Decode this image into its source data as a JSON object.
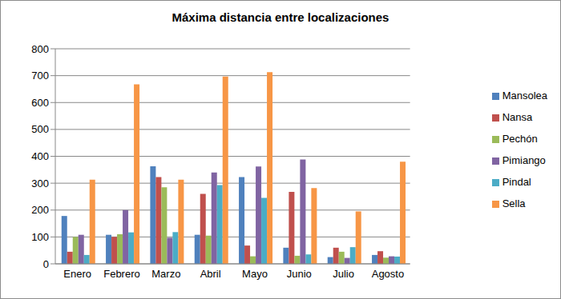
{
  "chart_data": {
    "type": "bar",
    "title": "Máxima distancia entre localizaciones",
    "categories": [
      "Enero",
      "Febrero",
      "Marzo",
      "Abril",
      "Mayo",
      "Junio",
      "Julio",
      "Agosto"
    ],
    "series": [
      {
        "name": "Mansolea",
        "color": "#4f81bd",
        "values": [
          178,
          108,
          363,
          108,
          323,
          60,
          25,
          33
        ]
      },
      {
        "name": "Nansa",
        "color": "#c0504d",
        "values": [
          45,
          100,
          323,
          260,
          68,
          268,
          60,
          47
        ]
      },
      {
        "name": "Pechón",
        "color": "#9bbb59",
        "values": [
          100,
          110,
          285,
          105,
          28,
          30,
          45,
          23
        ]
      },
      {
        "name": "Pimiango",
        "color": "#8064a2",
        "values": [
          108,
          200,
          97,
          340,
          362,
          388,
          22,
          28
        ]
      },
      {
        "name": "Pindal",
        "color": "#4bacc6",
        "values": [
          33,
          117,
          118,
          293,
          245,
          35,
          62,
          27
        ]
      },
      {
        "name": "Sella",
        "color": "#f79646",
        "values": [
          313,
          668,
          313,
          697,
          713,
          282,
          195,
          380
        ]
      }
    ],
    "ylim": [
      0,
      800
    ],
    "yticks": [
      0,
      100,
      200,
      300,
      400,
      500,
      600,
      700,
      800
    ],
    "grid": true,
    "legend": "right"
  }
}
